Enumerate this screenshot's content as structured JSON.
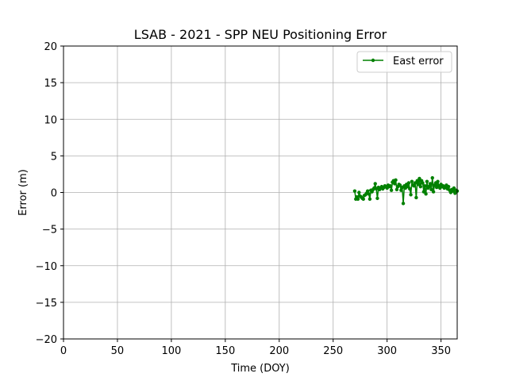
{
  "chart_data": {
    "type": "line",
    "title": "LSAB - 2021 - SPP NEU Positioning Error",
    "xlabel": "Time (DOY)",
    "ylabel": "Error (m)",
    "xlim": [
      0,
      365
    ],
    "ylim": [
      -20,
      20
    ],
    "xticks": [
      0,
      50,
      100,
      150,
      200,
      250,
      300,
      350
    ],
    "yticks": [
      -20,
      -15,
      -10,
      -5,
      0,
      5,
      10,
      15,
      20
    ],
    "xtick_labels": [
      "0",
      "50",
      "100",
      "150",
      "200",
      "250",
      "300",
      "350"
    ],
    "ytick_labels": [
      "−20",
      "−15",
      "−10",
      "−5",
      "0",
      "5",
      "10",
      "15",
      "20"
    ],
    "grid": true,
    "legend_position": "top-right",
    "series": [
      {
        "name": "East error",
        "color": "#008000",
        "marker": "circle",
        "x": [
          270,
          271,
          272,
          273,
          274,
          275,
          276,
          277,
          278,
          279,
          280,
          281,
          282,
          283,
          284,
          285,
          286,
          287,
          288,
          289,
          290,
          291,
          292,
          293,
          294,
          295,
          296,
          297,
          298,
          299,
          300,
          301,
          302,
          303,
          304,
          305,
          306,
          307,
          308,
          309,
          310,
          311,
          312,
          313,
          314,
          315,
          316,
          317,
          318,
          319,
          320,
          321,
          322,
          323,
          324,
          325,
          326,
          327,
          328,
          329,
          330,
          331,
          332,
          333,
          334,
          335,
          336,
          337,
          338,
          339,
          340,
          341,
          342,
          343,
          344,
          345,
          346,
          347,
          348,
          349,
          350,
          351,
          352,
          353,
          354,
          355,
          356,
          357,
          358,
          359,
          360,
          361,
          362,
          363,
          364,
          365
        ],
        "y": [
          0.2,
          -0.9,
          -0.6,
          -0.9,
          0.0,
          -0.5,
          -0.6,
          -0.8,
          -0.9,
          -0.4,
          -0.3,
          -0.1,
          0.2,
          -0.2,
          -0.9,
          0.3,
          0.1,
          0.4,
          0.6,
          1.2,
          0.5,
          -0.8,
          0.7,
          0.4,
          0.6,
          0.8,
          0.5,
          0.7,
          0.9,
          0.8,
          0.6,
          1.0,
          0.8,
          0.9,
          0.3,
          1.4,
          1.6,
          1.2,
          1.7,
          0.4,
          0.8,
          1.1,
          1.0,
          0.3,
          0.7,
          -1.5,
          0.9,
          0.6,
          1.1,
          0.8,
          1.3,
          0.5,
          -0.3,
          1.5,
          1.0,
          0.9,
          1.3,
          -0.7,
          1.6,
          1.1,
          1.9,
          0.8,
          1.6,
          1.3,
          0.1,
          0.9,
          -0.2,
          1.5,
          0.6,
          0.8,
          1.2,
          0.4,
          2.0,
          0.1,
          1.0,
          1.3,
          0.7,
          1.5,
          0.9,
          0.6,
          1.1,
          0.8,
          0.9,
          0.6,
          0.7,
          1.0,
          0.5,
          0.8,
          0.3,
          0.0,
          0.4,
          0.2,
          0.6,
          -0.1,
          0.3,
          0.2
        ]
      }
    ]
  }
}
